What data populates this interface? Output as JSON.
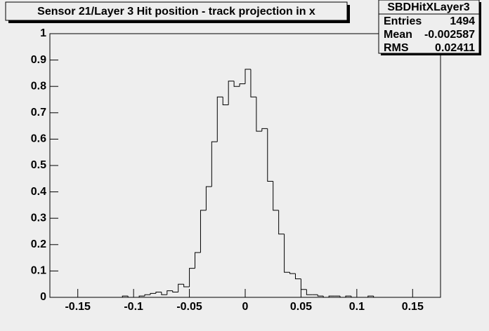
{
  "chart_data": {
    "type": "histogram",
    "title": "Sensor 21/Layer 3 Hit position - track projection in x",
    "stats": {
      "name": "SBDHitXLayer3",
      "rows": [
        [
          "Entries",
          1494
        ],
        [
          "Mean",
          -0.002587
        ],
        [
          "RMS",
          0.02411
        ]
      ]
    },
    "bins": [
      -0.175,
      -0.17,
      -0.165,
      -0.16,
      -0.155,
      -0.15,
      -0.145,
      -0.14,
      -0.135,
      -0.13,
      -0.125,
      -0.12,
      -0.115,
      -0.11,
      -0.105,
      -0.1,
      -0.095,
      -0.09,
      -0.085,
      -0.08,
      -0.075,
      -0.07,
      -0.065,
      -0.06,
      -0.055,
      -0.05,
      -0.045,
      -0.04,
      -0.035,
      -0.03,
      -0.025,
      -0.02,
      -0.015,
      -0.01,
      -0.005,
      0,
      0.005,
      0.01,
      0.015,
      0.02,
      0.025,
      0.03,
      0.035,
      0.04,
      0.045,
      0.05,
      0.055,
      0.06,
      0.065,
      0.07,
      0.075,
      0.08,
      0.085,
      0.09,
      0.095,
      0.1,
      0.105,
      0.11,
      0.115,
      0.12,
      0.125,
      0.13,
      0.135,
      0.14,
      0.145,
      0.15,
      0.155,
      0.16,
      0.165,
      0.17,
      0.175
    ],
    "values": [
      0,
      0,
      0,
      0,
      0,
      0,
      0,
      0,
      0,
      0,
      0,
      0,
      0,
      0.005,
      0,
      0,
      0.005,
      0.01,
      0.015,
      0.02,
      0.01,
      0.025,
      0.02,
      0.05,
      0.04,
      0.11,
      0.17,
      0.33,
      0.42,
      0.59,
      0.76,
      0.73,
      0.82,
      0.8,
      0.81,
      0.865,
      0.76,
      0.63,
      0.64,
      0.44,
      0.33,
      0.24,
      0.095,
      0.09,
      0.07,
      0.03,
      0.01,
      0.01,
      0.005,
      0,
      0.005,
      0.005,
      0,
      0.005,
      0,
      0,
      0,
      0.005,
      0,
      0,
      0,
      0,
      0,
      0,
      0,
      0,
      0,
      0,
      0,
      0
    ],
    "color": "#000000",
    "xlim": [
      -0.175,
      0.175
    ],
    "ylim": [
      0,
      1
    ],
    "xticks": [
      -0.15,
      -0.1,
      -0.05,
      0,
      0.05,
      0.1,
      0.15
    ],
    "yticks": [
      0,
      0.1,
      0.2,
      0.3,
      0.4,
      0.5,
      0.6,
      0.7,
      0.8,
      0.9,
      1
    ]
  }
}
